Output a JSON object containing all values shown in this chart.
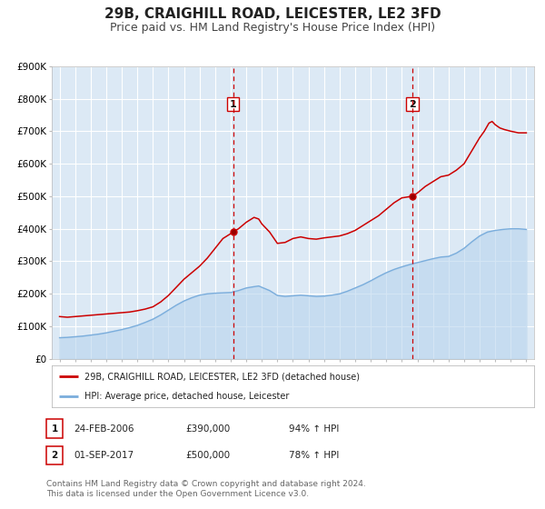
{
  "title": "29B, CRAIGHILL ROAD, LEICESTER, LE2 3FD",
  "subtitle": "Price paid vs. HM Land Registry's House Price Index (HPI)",
  "title_fontsize": 11,
  "subtitle_fontsize": 9,
  "background_color": "#ffffff",
  "plot_bg_color": "#dce9f5",
  "grid_color": "#ffffff",
  "red_line_color": "#cc0000",
  "blue_line_color": "#7aaddc",
  "blue_fill_color": "#b8d4ed",
  "ylim": [
    0,
    900000
  ],
  "yticks": [
    0,
    100000,
    200000,
    300000,
    400000,
    500000,
    600000,
    700000,
    800000,
    900000
  ],
  "ytick_labels": [
    "£0",
    "£100K",
    "£200K",
    "£300K",
    "£400K",
    "£500K",
    "£600K",
    "£700K",
    "£800K",
    "£900K"
  ],
  "xlim_start": 1994.5,
  "xlim_end": 2025.5,
  "xticks": [
    1995,
    1996,
    1997,
    1998,
    1999,
    2000,
    2001,
    2002,
    2003,
    2004,
    2005,
    2006,
    2007,
    2008,
    2009,
    2010,
    2011,
    2012,
    2013,
    2014,
    2015,
    2016,
    2017,
    2018,
    2019,
    2020,
    2021,
    2022,
    2023,
    2024,
    2025
  ],
  "marker1_x": 2006.15,
  "marker1_y": 390000,
  "marker2_x": 2017.67,
  "marker2_y": 500000,
  "vline1_x": 2006.15,
  "vline2_x": 2017.67,
  "legend_label_red": "29B, CRAIGHILL ROAD, LEICESTER, LE2 3FD (detached house)",
  "legend_label_blue": "HPI: Average price, detached house, Leicester",
  "table_row1": [
    "1",
    "24-FEB-2006",
    "£390,000",
    "94% ↑ HPI"
  ],
  "table_row2": [
    "2",
    "01-SEP-2017",
    "£500,000",
    "78% ↑ HPI"
  ],
  "footnote": "Contains HM Land Registry data © Crown copyright and database right 2024.\nThis data is licensed under the Open Government Licence v3.0.",
  "footnote_fontsize": 6.5,
  "red_line_data": {
    "x": [
      1995.0,
      1995.5,
      1996.0,
      1996.5,
      1997.0,
      1997.5,
      1998.0,
      1998.5,
      1999.0,
      1999.5,
      2000.0,
      2000.5,
      2001.0,
      2001.5,
      2002.0,
      2002.5,
      2003.0,
      2003.5,
      2004.0,
      2004.5,
      2005.0,
      2005.5,
      2006.0,
      2006.15,
      2006.5,
      2007.0,
      2007.5,
      2007.8,
      2008.0,
      2008.5,
      2009.0,
      2009.5,
      2010.0,
      2010.5,
      2011.0,
      2011.5,
      2012.0,
      2012.5,
      2013.0,
      2013.5,
      2014.0,
      2014.5,
      2015.0,
      2015.5,
      2016.0,
      2016.5,
      2017.0,
      2017.67,
      2018.0,
      2018.5,
      2019.0,
      2019.5,
      2020.0,
      2020.5,
      2021.0,
      2021.5,
      2022.0,
      2022.3,
      2022.6,
      2022.8,
      2023.0,
      2023.3,
      2023.6,
      2024.0,
      2024.5,
      2025.0
    ],
    "y": [
      130000,
      128000,
      130000,
      132000,
      134000,
      136000,
      138000,
      140000,
      142000,
      144000,
      148000,
      153000,
      160000,
      175000,
      195000,
      220000,
      245000,
      265000,
      285000,
      310000,
      340000,
      370000,
      385000,
      390000,
      400000,
      420000,
      435000,
      430000,
      415000,
      390000,
      355000,
      358000,
      370000,
      375000,
      370000,
      368000,
      372000,
      375000,
      378000,
      385000,
      395000,
      410000,
      425000,
      440000,
      460000,
      480000,
      495000,
      500000,
      510000,
      530000,
      545000,
      560000,
      565000,
      580000,
      600000,
      640000,
      680000,
      700000,
      725000,
      730000,
      720000,
      710000,
      705000,
      700000,
      695000,
      695000
    ]
  },
  "blue_line_data": {
    "x": [
      1995.0,
      1995.5,
      1996.0,
      1996.5,
      1997.0,
      1997.5,
      1998.0,
      1998.5,
      1999.0,
      1999.5,
      2000.0,
      2000.5,
      2001.0,
      2001.5,
      2002.0,
      2002.5,
      2003.0,
      2003.5,
      2004.0,
      2004.5,
      2005.0,
      2005.5,
      2006.0,
      2006.5,
      2007.0,
      2007.5,
      2007.8,
      2008.0,
      2008.5,
      2009.0,
      2009.5,
      2010.0,
      2010.5,
      2011.0,
      2011.5,
      2012.0,
      2012.5,
      2013.0,
      2013.5,
      2014.0,
      2014.5,
      2015.0,
      2015.5,
      2016.0,
      2016.5,
      2017.0,
      2017.5,
      2018.0,
      2018.5,
      2019.0,
      2019.5,
      2020.0,
      2020.5,
      2021.0,
      2021.5,
      2022.0,
      2022.5,
      2023.0,
      2023.5,
      2024.0,
      2024.5,
      2025.0
    ],
    "y": [
      65000,
      66000,
      68000,
      70000,
      73000,
      76000,
      80000,
      85000,
      90000,
      96000,
      103000,
      112000,
      122000,
      135000,
      150000,
      165000,
      178000,
      188000,
      196000,
      200000,
      202000,
      203000,
      204000,
      210000,
      218000,
      222000,
      224000,
      220000,
      210000,
      195000,
      192000,
      194000,
      196000,
      194000,
      192000,
      193000,
      196000,
      200000,
      208000,
      218000,
      228000,
      240000,
      253000,
      265000,
      275000,
      283000,
      290000,
      296000,
      302000,
      308000,
      313000,
      315000,
      325000,
      340000,
      360000,
      378000,
      390000,
      395000,
      398000,
      400000,
      400000,
      398000
    ]
  }
}
